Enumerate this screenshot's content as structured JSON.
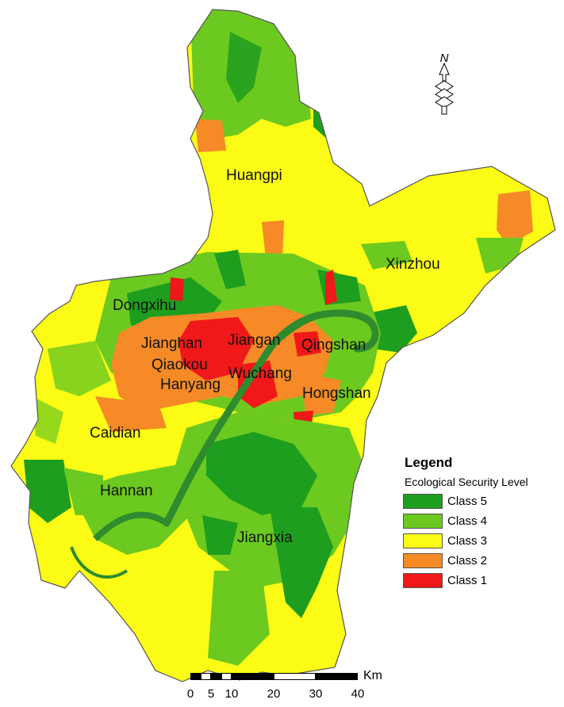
{
  "colors": {
    "class5": "#1e9e1e",
    "class4": "#6cc91f",
    "class3": "#fbfb16",
    "class2": "#f58a26",
    "class1": "#f01818",
    "river": "#2e8b2e"
  },
  "north_arrow": {
    "label": "N"
  },
  "districts": [
    {
      "id": "huangpi",
      "name": "Huangpi"
    },
    {
      "id": "xinzhou",
      "name": "Xinzhou"
    },
    {
      "id": "dongxihu",
      "name": "Dongxihu"
    },
    {
      "id": "jianghan",
      "name": "Jianghan"
    },
    {
      "id": "jiangan",
      "name": "Jiangan"
    },
    {
      "id": "qingshan",
      "name": "Qingshan"
    },
    {
      "id": "qiaokou",
      "name": "Qiaokou"
    },
    {
      "id": "wuchang",
      "name": "Wuchang"
    },
    {
      "id": "hanyang",
      "name": "Hanyang"
    },
    {
      "id": "hongshan",
      "name": "Hongshan"
    },
    {
      "id": "caidian",
      "name": "Caidian"
    },
    {
      "id": "hannan",
      "name": "Hannan"
    },
    {
      "id": "jiangxia",
      "name": "Jiangxia"
    }
  ],
  "legend": {
    "title": "Legend",
    "subtitle": "Ecological Security Level",
    "items": [
      {
        "label": "Class 5",
        "color": "#1e9e1e"
      },
      {
        "label": "Class 4",
        "color": "#6cc91f"
      },
      {
        "label": "Class 3",
        "color": "#fbfb16"
      },
      {
        "label": "Class 2",
        "color": "#f58a26"
      },
      {
        "label": "Class 1",
        "color": "#f01818"
      }
    ]
  },
  "scale_bar": {
    "unit": "Km",
    "ticks": [
      "0",
      "5",
      "10",
      "20",
      "30",
      "40"
    ]
  }
}
